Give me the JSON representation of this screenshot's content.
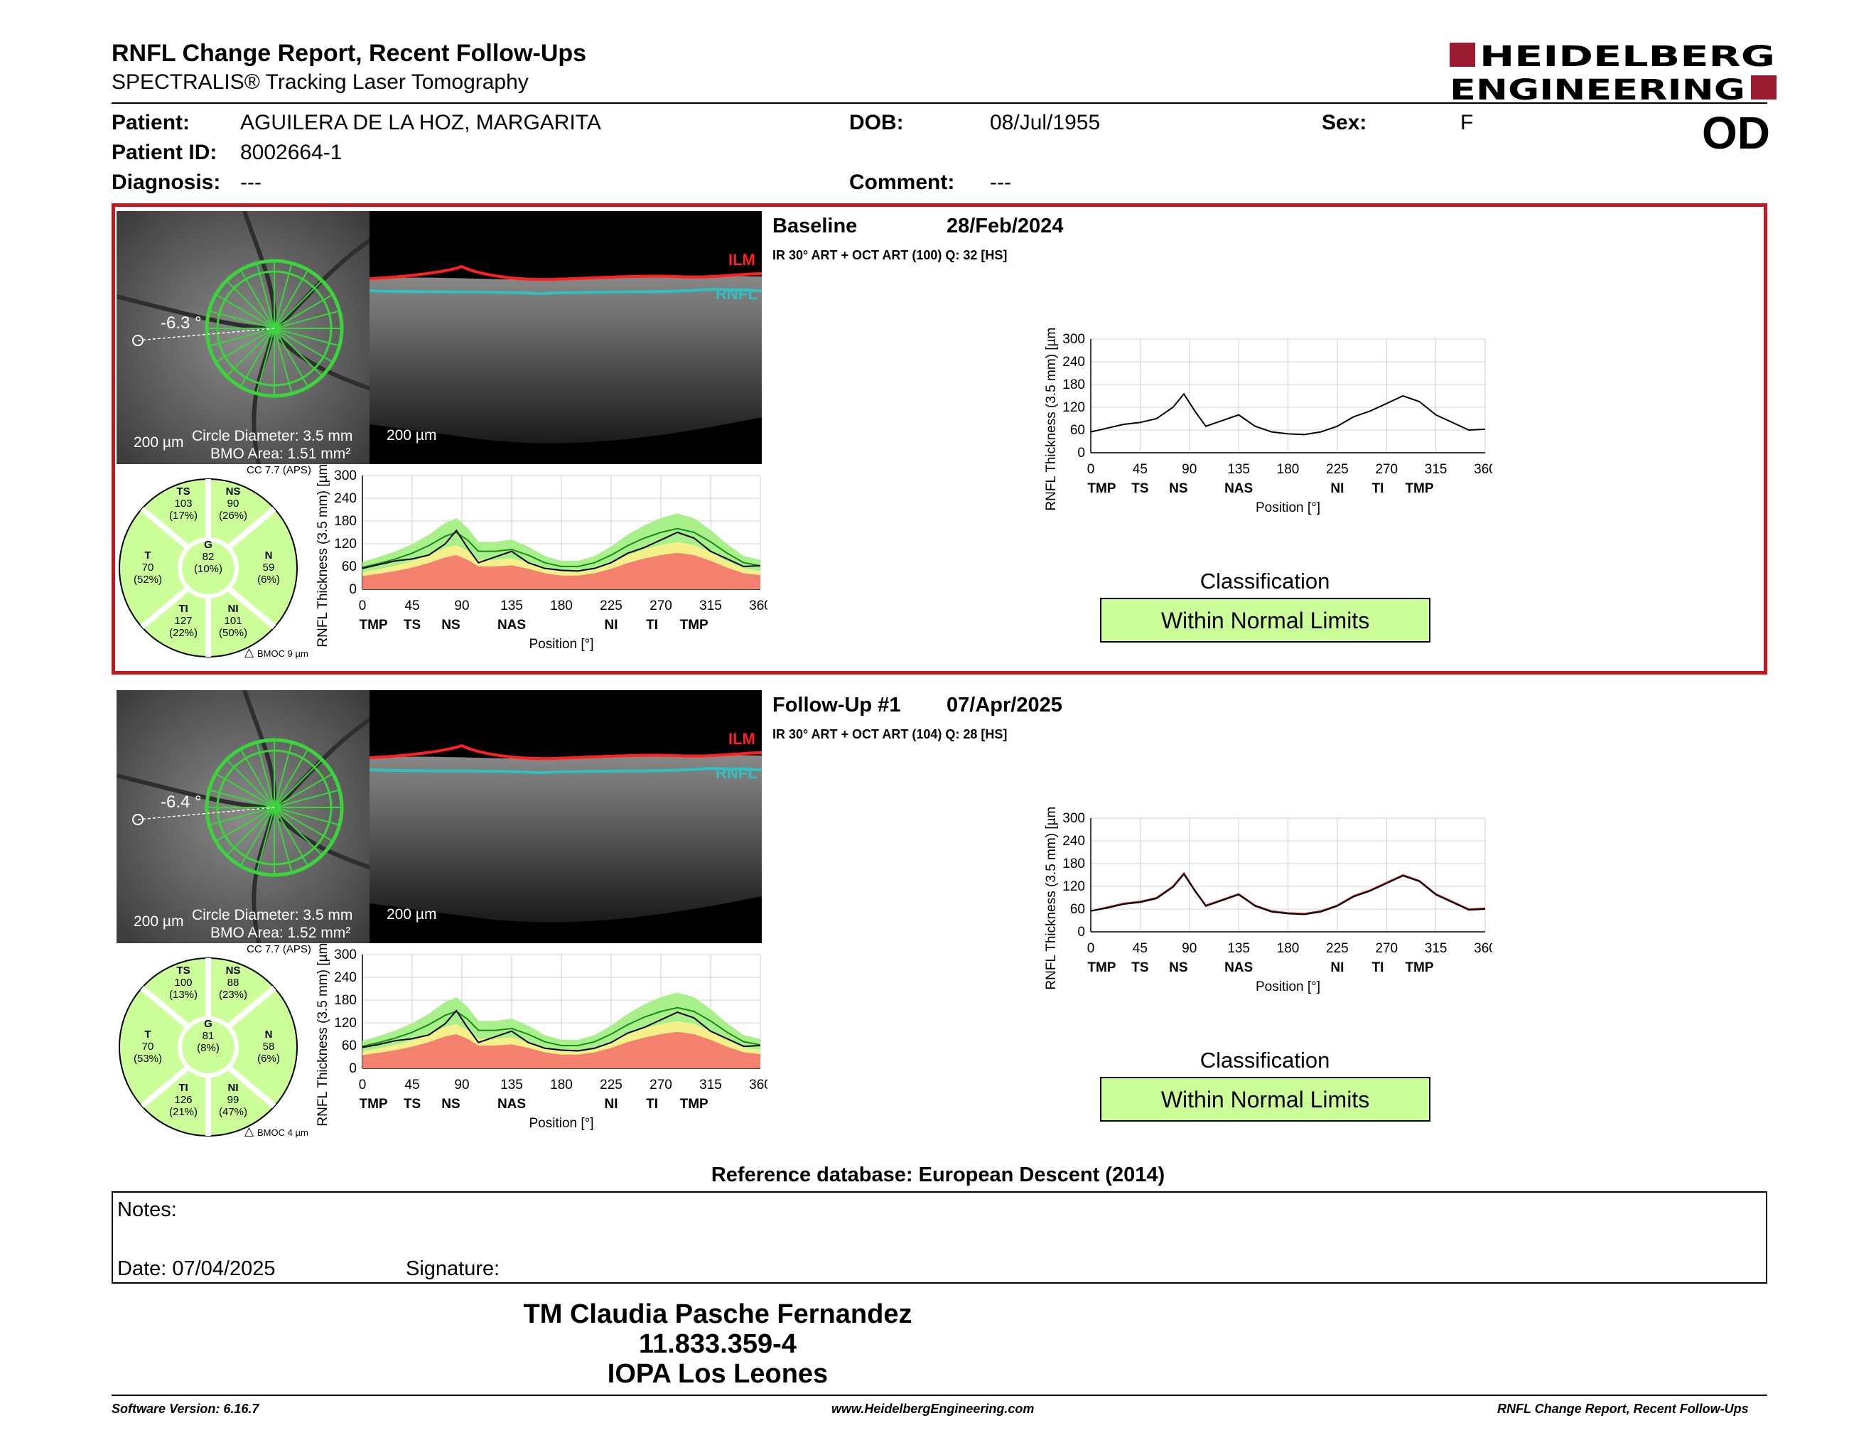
{
  "header": {
    "title": "RNFL Change Report, Recent Follow-Ups",
    "subtitle": "SPECTRALIS® Tracking Laser Tomography",
    "logo_line1": "HEIDELBERG",
    "logo_line2": "ENGINEERING"
  },
  "patient": {
    "patient_label": "Patient:",
    "patient_name": "AGUILERA DE LA HOZ, MARGARITA",
    "id_label": "Patient ID:",
    "patient_id": "8002664-1",
    "diagnosis_label": "Diagnosis:",
    "diagnosis": "---",
    "dob_label": "DOB:",
    "dob": "08/Jul/1955",
    "comment_label": "Comment:",
    "comment": "---",
    "sex_label": "Sex:",
    "sex": "F",
    "eye": "OD"
  },
  "scans": [
    {
      "name": "Baseline",
      "date": "28/Feb/2024",
      "info": "IR 30° ART + OCT ART (100) Q: 32 [HS]",
      "angle": "-6.3 °",
      "scale_fundus": "200 µm",
      "circle_diameter": "Circle Diameter: 3.5 mm",
      "bmo_area": "BMO Area: 1.51 mm²",
      "scale_oct": "200 µm",
      "ilm": "ILM",
      "rnfl": "RNFL",
      "cc": "CC 7.7 (APS)",
      "bmoc": "BMOC 9 µm",
      "sectors": {
        "TS": {
          "label": "TS",
          "value": "103",
          "pct": "(17%)"
        },
        "NS": {
          "label": "NS",
          "value": "90",
          "pct": "(26%)"
        },
        "T": {
          "label": "T",
          "value": "70",
          "pct": "(52%)"
        },
        "G": {
          "label": "G",
          "value": "82",
          "pct": "(10%)"
        },
        "N": {
          "label": "N",
          "value": "59",
          "pct": "(6%)"
        },
        "TI": {
          "label": "TI",
          "value": "127",
          "pct": "(22%)"
        },
        "NI": {
          "label": "NI",
          "value": "101",
          "pct": "(50%)"
        }
      },
      "classification_title": "Classification",
      "classification": "Within Normal Limits"
    },
    {
      "name": "Follow-Up #1",
      "date": "07/Apr/2025",
      "info": "IR 30° ART + OCT ART (104) Q: 28 [HS]",
      "angle": "-6.4 °",
      "scale_fundus": "200 µm",
      "circle_diameter": "Circle Diameter: 3.5 mm",
      "bmo_area": "BMO Area: 1.52 mm²",
      "scale_oct": "200 µm",
      "ilm": "ILM",
      "rnfl": "RNFL",
      "cc": "CC 7.7 (APS)",
      "bmoc": "BMOC 4 µm",
      "sectors": {
        "TS": {
          "label": "TS",
          "value": "100",
          "pct": "(13%)"
        },
        "NS": {
          "label": "NS",
          "value": "88",
          "pct": "(23%)"
        },
        "T": {
          "label": "T",
          "value": "70",
          "pct": "(53%)"
        },
        "G": {
          "label": "G",
          "value": "81",
          "pct": "(8%)"
        },
        "N": {
          "label": "N",
          "value": "58",
          "pct": "(6%)"
        },
        "TI": {
          "label": "TI",
          "value": "126",
          "pct": "(21%)"
        },
        "NI": {
          "label": "NI",
          "value": "99",
          "pct": "(47%)"
        }
      },
      "classification_title": "Classification",
      "classification": "Within Normal Limits"
    }
  ],
  "chart_data": [
    {
      "type": "line",
      "chart": "baseline-small",
      "ylabel": "RNFL Thickness (3.5 mm) [µm]",
      "xlabel": "Position [°]",
      "ylim": [
        0,
        300
      ],
      "xlim": [
        0,
        360
      ],
      "yticks": [
        "300",
        "240",
        "180",
        "120",
        "60",
        "0"
      ],
      "xticks": [
        "0",
        "45",
        "90",
        "135",
        "180",
        "225",
        "270",
        "315",
        "360"
      ],
      "sector_labels": [
        "TMP",
        "TS",
        "NS",
        "NAS",
        "NI",
        "TI",
        "TMP"
      ],
      "x": [
        0,
        15,
        30,
        45,
        60,
        75,
        85,
        95,
        105,
        120,
        135,
        150,
        165,
        180,
        195,
        210,
        225,
        240,
        255,
        270,
        285,
        300,
        315,
        330,
        345,
        360
      ],
      "series": [
        {
          "values": [
            55,
            65,
            75,
            80,
            90,
            120,
            155,
            110,
            70,
            85,
            100,
            70,
            55,
            50,
            48,
            55,
            70,
            95,
            110,
            130,
            150,
            135,
            100,
            80,
            60,
            62
          ]
        },
        {
          "values": [
            58,
            68,
            80,
            95,
            115,
            140,
            150,
            130,
            100,
            100,
            105,
            90,
            70,
            60,
            60,
            70,
            90,
            115,
            135,
            150,
            160,
            150,
            125,
            95,
            70,
            62
          ]
        }
      ]
    },
    {
      "type": "line",
      "chart": "baseline-large",
      "ylabel": "RNFL Thickness (3.5 mm) [µm]",
      "xlabel": "Position [°]",
      "ylim": [
        0,
        300
      ],
      "xlim": [
        0,
        360
      ],
      "yticks": [
        "300",
        "240",
        "180",
        "120",
        "60",
        "0"
      ],
      "xticks": [
        "0",
        "45",
        "90",
        "135",
        "180",
        "225",
        "270",
        "315",
        "360"
      ],
      "sector_labels": [
        "TMP",
        "TS",
        "NS",
        "NAS",
        "NI",
        "TI",
        "TMP"
      ],
      "x": [
        0,
        15,
        30,
        45,
        60,
        75,
        85,
        95,
        105,
        120,
        135,
        150,
        165,
        180,
        195,
        210,
        225,
        240,
        255,
        270,
        285,
        300,
        315,
        330,
        345,
        360
      ],
      "series": [
        {
          "values": [
            55,
            65,
            75,
            80,
            90,
            120,
            155,
            110,
            70,
            85,
            100,
            70,
            55,
            50,
            48,
            55,
            70,
            95,
            110,
            130,
            150,
            135,
            100,
            80,
            60,
            62
          ]
        }
      ]
    },
    {
      "type": "line",
      "chart": "followup-small",
      "ylabel": "RNFL Thickness (3.5 mm) [µm]",
      "xlabel": "Position [°]",
      "ylim": [
        0,
        300
      ],
      "xlim": [
        0,
        360
      ],
      "yticks": [
        "300",
        "240",
        "180",
        "120",
        "60",
        "0"
      ],
      "xticks": [
        "0",
        "45",
        "90",
        "135",
        "180",
        "225",
        "270",
        "315",
        "360"
      ],
      "sector_labels": [
        "TMP",
        "TS",
        "NS",
        "NAS",
        "NI",
        "TI",
        "TMP"
      ],
      "x": [
        0,
        15,
        30,
        45,
        60,
        75,
        85,
        95,
        105,
        120,
        135,
        150,
        165,
        180,
        195,
        210,
        225,
        240,
        255,
        270,
        285,
        300,
        315,
        330,
        345,
        360
      ],
      "series": [
        {
          "values": [
            55,
            63,
            73,
            78,
            88,
            118,
            152,
            108,
            68,
            83,
            98,
            68,
            53,
            48,
            46,
            53,
            68,
            93,
            108,
            128,
            148,
            133,
            98,
            78,
            58,
            60
          ]
        },
        {
          "values": [
            58,
            68,
            80,
            95,
            115,
            140,
            150,
            130,
            100,
            100,
            105,
            90,
            70,
            60,
            60,
            70,
            90,
            115,
            135,
            150,
            160,
            150,
            125,
            95,
            70,
            62
          ]
        }
      ]
    },
    {
      "type": "line",
      "chart": "followup-large",
      "ylabel": "RNFL Thickness (3.5 mm) [µm]",
      "xlabel": "Position [°]",
      "ylim": [
        0,
        300
      ],
      "xlim": [
        0,
        360
      ],
      "yticks": [
        "300",
        "240",
        "180",
        "120",
        "60",
        "0"
      ],
      "xticks": [
        "0",
        "45",
        "90",
        "135",
        "180",
        "225",
        "270",
        "315",
        "360"
      ],
      "sector_labels": [
        "TMP",
        "TS",
        "NS",
        "NAS",
        "NI",
        "TI",
        "TMP"
      ],
      "x": [
        0,
        15,
        30,
        45,
        60,
        75,
        85,
        95,
        105,
        120,
        135,
        150,
        165,
        180,
        195,
        210,
        225,
        240,
        255,
        270,
        285,
        300,
        315,
        330,
        345,
        360
      ],
      "series": [
        {
          "values": [
            55,
            63,
            73,
            78,
            88,
            118,
            152,
            108,
            68,
            83,
            98,
            68,
            53,
            48,
            46,
            53,
            68,
            93,
            108,
            128,
            148,
            133,
            98,
            78,
            58,
            60
          ]
        },
        {
          "values": [
            55,
            65,
            75,
            80,
            90,
            120,
            155,
            110,
            70,
            85,
            100,
            70,
            55,
            50,
            48,
            55,
            70,
            95,
            110,
            130,
            150,
            135,
            100,
            80,
            60,
            62
          ]
        }
      ]
    }
  ],
  "colors": {
    "accent": "#c4161c",
    "normal_green": "#ccff99",
    "band_green": "#a8f08a",
    "band_yellow": "#f5f08a",
    "band_red": "#f4806e",
    "mean_line": "#1a8a1a",
    "circle_green": "#3cd43c"
  },
  "footer": {
    "reference": "Reference database: European Descent (2014)",
    "notes_label": "Notes:",
    "date_label": "Date: 07/04/2025",
    "signature_label": "Signature:",
    "sign_name": "TM Claudia Pasche Fernandez",
    "sign_id": "11.833.359-4",
    "sign_place": "IOPA Los Leones",
    "software": "Software Version: 6.16.7",
    "website": "www.HeidelbergEngineering.com",
    "report_name": "RNFL Change Report, Recent Follow-Ups"
  }
}
